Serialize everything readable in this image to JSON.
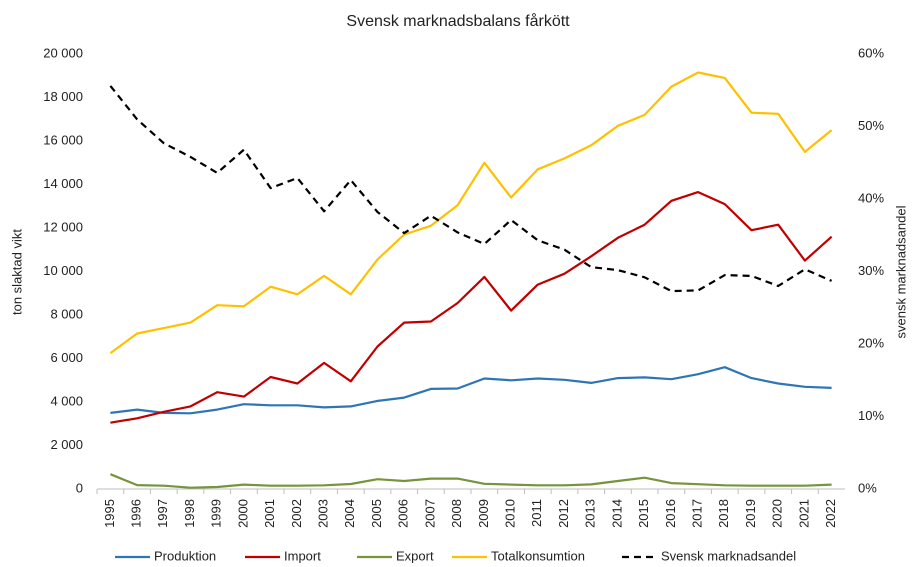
{
  "chart_data": {
    "type": "line",
    "title": "Svensk marknadsbalans fårkött",
    "y_label": "ton slaktad vikt",
    "y2_label": "svensk marknadsandel",
    "categories": [
      "1995",
      "1996",
      "1997",
      "1998",
      "1999",
      "2000",
      "2001",
      "2002",
      "2003",
      "2004",
      "2005",
      "2006",
      "2007",
      "2008",
      "2009",
      "2010",
      "2011",
      "2012",
      "2013",
      "2014",
      "2015",
      "2016",
      "2017",
      "2018",
      "2019",
      "2020",
      "2021",
      "2022"
    ],
    "series": [
      {
        "name": "Produktion",
        "color": "#2e75b6",
        "values": [
          3500,
          3650,
          3500,
          3480,
          3650,
          3900,
          3850,
          3850,
          3750,
          3800,
          4050,
          4200,
          4600,
          4620,
          5080,
          5000,
          5080,
          5020,
          4880,
          5100,
          5130,
          5050,
          5280,
          5600,
          5100,
          4850,
          4700,
          4650
        ]
      },
      {
        "name": "Import",
        "color": "#c00000",
        "values": [
          3050,
          3250,
          3550,
          3800,
          4450,
          4250,
          5150,
          4850,
          5800,
          4950,
          6550,
          7650,
          7700,
          8550,
          9750,
          8200,
          9400,
          9900,
          10700,
          11550,
          12150,
          13250,
          13650,
          13100,
          11900,
          12150,
          10500,
          11600
        ]
      },
      {
        "name": "Export",
        "color": "#77933c",
        "values": [
          680,
          180,
          150,
          60,
          90,
          200,
          150,
          150,
          170,
          230,
          450,
          370,
          480,
          480,
          240,
          200,
          170,
          170,
          210,
          370,
          520,
          270,
          220,
          170,
          150,
          150,
          150,
          200
        ]
      },
      {
        "name": "Totalkonsumtion",
        "color": "#ffc000",
        "values": [
          6250,
          7150,
          7400,
          7650,
          8450,
          8400,
          9300,
          8950,
          9800,
          8950,
          10550,
          11700,
          12100,
          13050,
          15000,
          13400,
          14700,
          15200,
          15800,
          16700,
          17200,
          18500,
          19150,
          18900,
          17300,
          17250,
          15500,
          16500
        ]
      },
      {
        "name": "Svensk marknadsandel",
        "color": "#000000",
        "dashed": true,
        "axis": "y2",
        "values": [
          55.6,
          51,
          47.7,
          45.8,
          43.6,
          46.8,
          41.5,
          42.9,
          38.3,
          42.6,
          38.2,
          35.3,
          37.7,
          35.4,
          33.8,
          37.1,
          34.3,
          33,
          30.6,
          30.2,
          29.2,
          27.3,
          27.4,
          29.5,
          29.4,
          28,
          30.3,
          28.7
        ]
      }
    ],
    "ylim": [
      0,
      20000
    ],
    "yticks": [
      0,
      {
        "value": 2000,
        "label": "2 000"
      },
      {
        "value": 4000,
        "label": "4 000"
      },
      {
        "value": 6000,
        "label": "6 000"
      },
      {
        "value": 8000,
        "label": "8 000"
      },
      {
        "value": 10000,
        "label": "10 000"
      },
      {
        "value": 12000,
        "label": "12 000"
      },
      {
        "value": 14000,
        "label": "14 000"
      },
      {
        "value": 16000,
        "label": "16 000"
      },
      {
        "value": 18000,
        "label": "18 000"
      },
      {
        "value": 20000,
        "label": "20 000"
      }
    ],
    "y2lim": [
      0,
      60
    ],
    "y2ticks": [
      {
        "value": 0,
        "label": "0%"
      },
      {
        "value": 10,
        "label": "10%"
      },
      {
        "value": 20,
        "label": "20%"
      },
      {
        "value": 30,
        "label": "30%"
      },
      {
        "value": 40,
        "label": "40%"
      },
      {
        "value": 50,
        "label": "50%"
      },
      {
        "value": 60,
        "label": "60%"
      }
    ],
    "grid": false,
    "legend": "bottom"
  }
}
